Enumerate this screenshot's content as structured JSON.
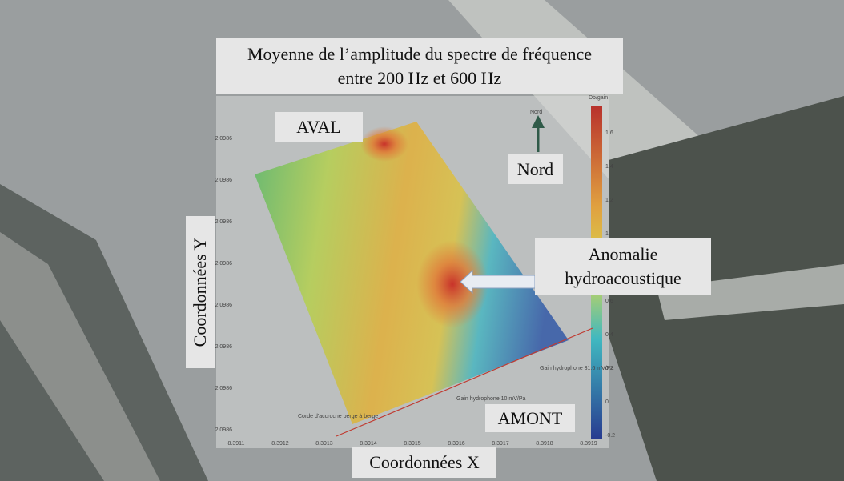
{
  "title": {
    "line1": "Moyenne de l’amplitude du spectre de fréquence",
    "line2": "entre 200 Hz et 600 Hz"
  },
  "labels": {
    "aval": "AVAL",
    "amont": "AMONT",
    "nord": "Nord",
    "y_axis": "Coordonnées Y",
    "x_axis": "Coordonnées X",
    "anomaly_line1": "Anomalie",
    "anomaly_line2": "hydroacoustique"
  },
  "figure": {
    "colorbar_label": "Db/gain",
    "colorbar_ticks": [
      "1.6",
      "1.4",
      "1.2",
      "1",
      "0.8",
      "0.6",
      "0.4",
      "0.2",
      "0",
      "-0.2"
    ],
    "x_ticks": [
      "8.3911",
      "8.3912",
      "8.3913",
      "8.3914",
      "8.3915",
      "8.3916",
      "8.3917",
      "8.3918",
      "8.3919"
    ],
    "y_ticks": [
      "2.0986",
      "2.0986",
      "2.0986",
      "2.0986",
      "2.0986",
      "2.0986",
      "2.0986",
      "2.0986"
    ],
    "north_small": "Nord",
    "rope": "Corde d'accroche berge à berge",
    "gain_a": "Gain hydrophone 31.6 mV/Pa",
    "gain_b": "Gain hydrophone 10 mV/Pa"
  }
}
